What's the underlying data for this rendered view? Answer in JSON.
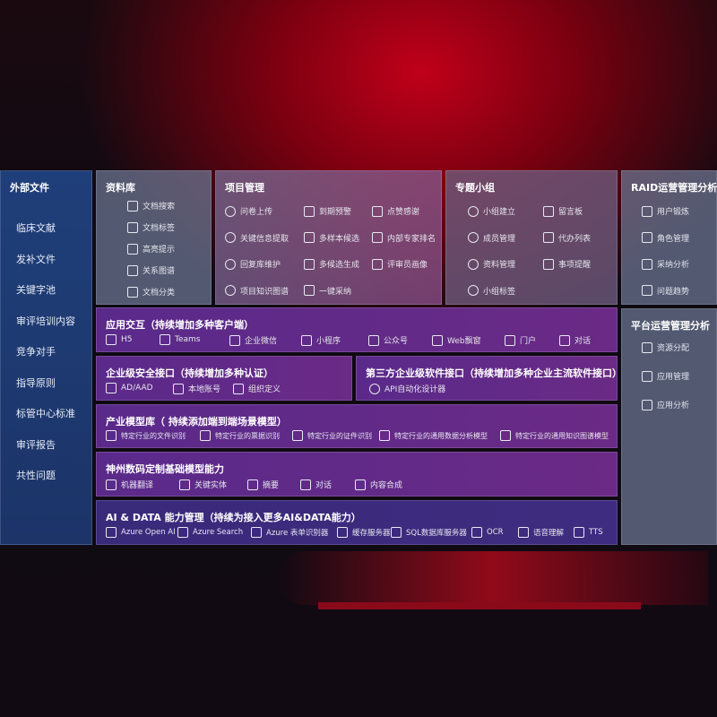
{
  "sidebar": {
    "title": "外部文件",
    "items": [
      "临床文献",
      "发补文件",
      "关键字池",
      "审评培训内容",
      "竞争对手",
      "指导原则",
      "标管中心标准",
      "审评报告",
      "共性问题"
    ]
  },
  "resource": {
    "title": "资料库",
    "items": [
      "文档搜索",
      "文档标签",
      "高亮提示",
      "关系图谱",
      "文档分类"
    ]
  },
  "project": {
    "title": "项目管理",
    "col1": [
      "问卷上传",
      "关键信息提取",
      "回复库维护",
      "项目知识图谱"
    ],
    "col2": [
      "到期预警",
      "多样本候选",
      "多候选生成",
      "一键采纳"
    ],
    "col3": [
      "点赞感谢",
      "内部专家排名",
      "评审员画像"
    ]
  },
  "topic": {
    "title": "专题小组",
    "col1": [
      "小组建立",
      "成员管理",
      "资料管理",
      "小组标签"
    ],
    "col2": [
      "留言板",
      "代办列表",
      "事项提醒"
    ]
  },
  "raid": {
    "title": "RAID运营管理分析",
    "items": [
      "用户锻炼",
      "角色管理",
      "采纳分析",
      "问题趋势"
    ]
  },
  "platform": {
    "title": "平台运营管理分析",
    "items": [
      "资源分配",
      "应用管理",
      "应用分析"
    ]
  },
  "app": {
    "title": "应用交互（持续增加多种客户端）",
    "items": [
      "H5",
      "Teams",
      "企业微信",
      "小程序",
      "公众号",
      "Web飘窗",
      "门户",
      "对话"
    ]
  },
  "security": {
    "title": "企业级安全接口（持续增加多种认证）",
    "items": [
      "AD/AAD",
      "本地账号",
      "组织定义"
    ]
  },
  "third": {
    "title": "第三方企业级软件接口（持续增加多种企业主流软件接口）",
    "items": [
      "API自动化设计器"
    ]
  },
  "industry": {
    "title": "产业模型库（ 持续添加端到端场景模型）",
    "items": [
      "特定行业的文件识别",
      "特定行业的票据识别",
      "特定行业的证件识别",
      "特定行业的通用数据分析模型",
      "特定行业的通用知识图谱模型"
    ]
  },
  "base": {
    "title": "神州数码定制基础模型能力",
    "items": [
      "机器翻译",
      "关键实体",
      "摘要",
      "对话",
      "内容合成"
    ]
  },
  "ai": {
    "title": "AI & DATA 能力管理（持续为接入更多AI&DATA能力）",
    "items": [
      "Azure Open AI",
      "Azure Search",
      "Azure 表单识别器",
      "缓存服务器",
      "SQL数据库服务器",
      "OCR",
      "语音理解",
      "TTS"
    ]
  }
}
